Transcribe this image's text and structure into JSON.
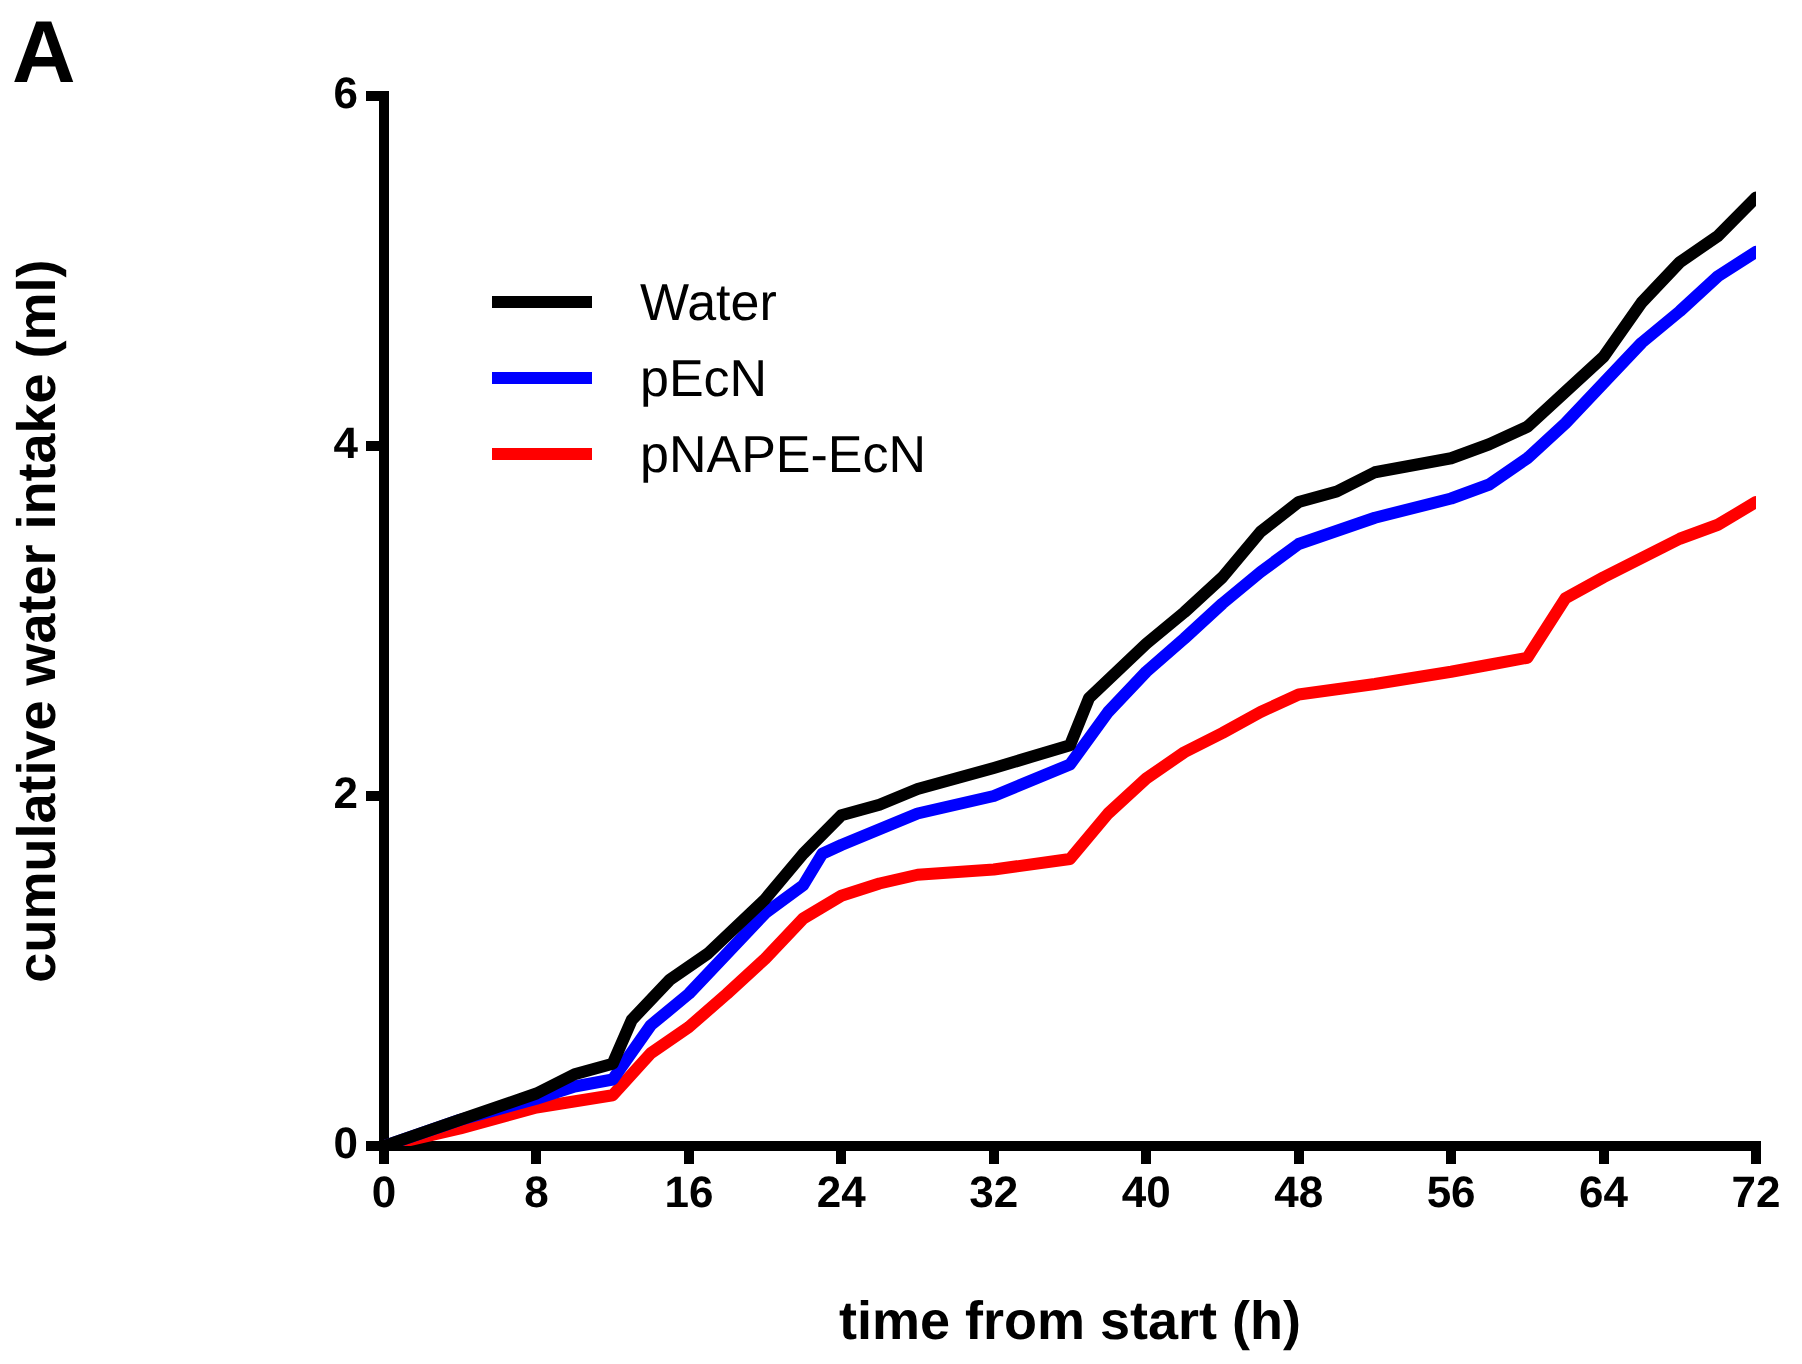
{
  "chart_data": {
    "type": "line",
    "xlabel": "time from start (h)",
    "ylabel": "cumulative water intake (ml)",
    "annotations": [
      "A"
    ],
    "xlim": [
      0,
      72
    ],
    "xticks": [
      0,
      8,
      16,
      24,
      32,
      40,
      48,
      56,
      64,
      72
    ],
    "ylim": [
      0,
      6
    ],
    "yticks": [
      0,
      2,
      4,
      6
    ],
    "grid": false,
    "legend": "top left",
    "marker": "none",
    "line_style": "solid",
    "series": [
      {
        "name": "Water",
        "color": "#000000",
        "x": [
          0,
          4,
          8,
          10,
          12,
          13,
          15,
          17,
          20,
          22,
          24,
          26,
          28,
          32,
          36,
          37,
          40,
          42,
          44,
          46,
          48,
          50,
          52,
          56,
          58,
          60,
          62,
          64,
          66,
          68,
          70,
          72
        ],
        "values": [
          0,
          0.15,
          0.3,
          0.41,
          0.47,
          0.72,
          0.95,
          1.1,
          1.41,
          1.67,
          1.89,
          1.95,
          2.04,
          2.16,
          2.29,
          2.56,
          2.87,
          3.05,
          3.25,
          3.51,
          3.68,
          3.74,
          3.85,
          3.93,
          4.01,
          4.11,
          4.31,
          4.51,
          4.82,
          5.05,
          5.2,
          5.42
        ]
      },
      {
        "name": "pEcN",
        "color": "#0000ff",
        "x": [
          0,
          4,
          8,
          10,
          12,
          14,
          16,
          18,
          20,
          22,
          23,
          24,
          28,
          32,
          36,
          38,
          40,
          42,
          44,
          46,
          48,
          52,
          56,
          58,
          60,
          62,
          64,
          66,
          68,
          70,
          72
        ],
        "values": [
          0,
          0.15,
          0.27,
          0.34,
          0.38,
          0.69,
          0.87,
          1.1,
          1.33,
          1.49,
          1.67,
          1.72,
          1.9,
          2.0,
          2.18,
          2.48,
          2.71,
          2.9,
          3.1,
          3.28,
          3.44,
          3.59,
          3.7,
          3.78,
          3.93,
          4.13,
          4.36,
          4.59,
          4.77,
          4.97,
          5.11
        ]
      },
      {
        "name": "pNAPE-EcN",
        "color": "#ff0000",
        "x": [
          0,
          4,
          8,
          12,
          14,
          16,
          18,
          20,
          22,
          24,
          26,
          28,
          32,
          36,
          38,
          40,
          42,
          44,
          46,
          48,
          52,
          56,
          58,
          60,
          62,
          64,
          66,
          68,
          70,
          72
        ],
        "values": [
          0,
          0.1,
          0.22,
          0.29,
          0.53,
          0.68,
          0.87,
          1.07,
          1.3,
          1.43,
          1.5,
          1.55,
          1.58,
          1.64,
          1.9,
          2.1,
          2.25,
          2.36,
          2.48,
          2.58,
          2.64,
          2.71,
          2.75,
          2.79,
          3.13,
          3.25,
          3.36,
          3.47,
          3.55,
          3.68
        ]
      }
    ]
  }
}
